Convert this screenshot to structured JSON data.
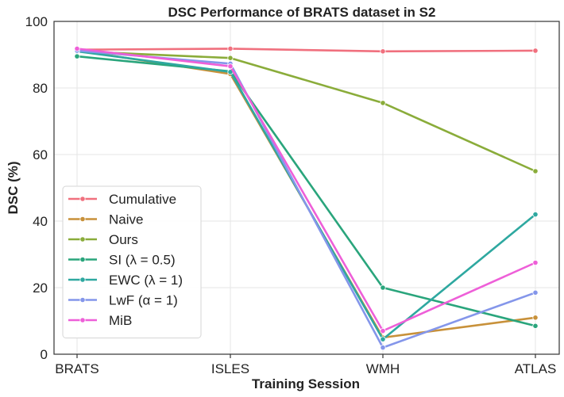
{
  "chart_data": {
    "type": "line",
    "title": "DSC Performance of BRATS dataset in S2",
    "xlabel": "Training Session",
    "ylabel": "DSC (%)",
    "categories": [
      "BRATS",
      "ISLES",
      "WMH",
      "ATLAS"
    ],
    "ylim": [
      0,
      100
    ],
    "yticks": [
      0,
      20,
      40,
      60,
      80,
      100
    ],
    "grid": true,
    "legend_position": "lower-left",
    "series": [
      {
        "name": "Cumulative",
        "color": "#f0707e",
        "values": [
          91.5,
          91.8,
          91.0,
          91.2
        ]
      },
      {
        "name": "Naive",
        "color": "#c8913a",
        "values": [
          91.3,
          84.2,
          5.0,
          11.0
        ]
      },
      {
        "name": "Ours",
        "color": "#8aac3a",
        "values": [
          91.0,
          89.0,
          75.5,
          55.0
        ]
      },
      {
        "name": "SI (λ = 0.5)",
        "color": "#2aa57c",
        "values": [
          89.5,
          85.0,
          20.0,
          8.5
        ]
      },
      {
        "name": "EWC (λ = 1)",
        "color": "#2ea8a0",
        "values": [
          91.0,
          84.8,
          4.5,
          42.0
        ]
      },
      {
        "name": "LwF (α = 1)",
        "color": "#8496ea",
        "values": [
          91.2,
          87.3,
          2.0,
          18.5
        ]
      },
      {
        "name": "MiB",
        "color": "#ee5fd8",
        "values": [
          91.8,
          86.5,
          7.0,
          27.5
        ]
      }
    ]
  }
}
